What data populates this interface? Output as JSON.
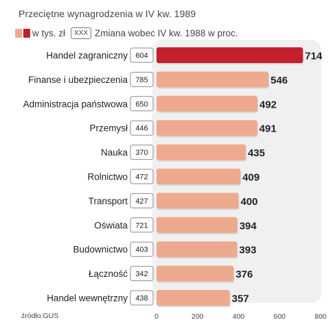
{
  "title": "Przeciętne wynagrodzenia  w IV kw. 1989",
  "legend": {
    "unit_label": "w tys. zł",
    "box_label": "XXX",
    "change_label": "Zmiana wobec IV kw. 1988 w proc."
  },
  "source": "źródło:GUS",
  "colors": {
    "highlight": "#c41f2d",
    "bar": "#eeaa8f",
    "panel": "#f0f0f0"
  },
  "chart_data": {
    "type": "bar",
    "orientation": "horizontal",
    "categories": [
      "Handel zagraniczny",
      "Finanse i ubezpieczenia",
      "Administracja państwowa",
      "Przemysł",
      "Nauka",
      "Rolnictwo",
      "Transport",
      "Oświata",
      "Budownictwo",
      "Łączność",
      "Handel wewnętrzny"
    ],
    "values": [
      714,
      546,
      492,
      491,
      435,
      409,
      400,
      394,
      393,
      376,
      357
    ],
    "change_percent": [
      604,
      785,
      650,
      446,
      370,
      472,
      427,
      721,
      403,
      342,
      438
    ],
    "highlight_index": 0,
    "xlim": [
      0,
      800
    ],
    "xticks": [
      "0",
      "200",
      "400",
      "600",
      "800"
    ],
    "grid": false
  }
}
